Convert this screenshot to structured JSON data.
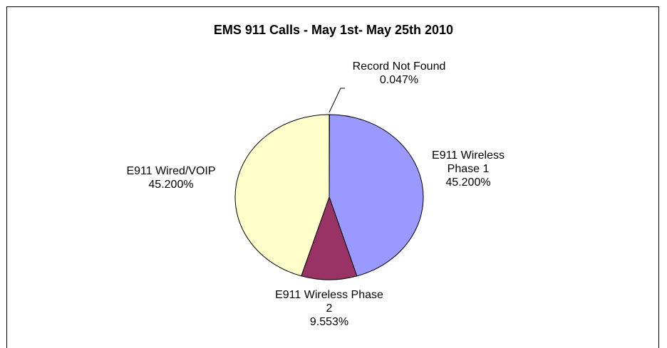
{
  "chart_data": {
    "type": "pie",
    "title": "EMS 911 Calls - May 1st- May 25th 2010",
    "categories": [
      "Record Not Found",
      "E911 Wireless Phase 1",
      "E911 Wireless Phase 2",
      "E911 Wired/VOIP"
    ],
    "values": [
      0.047,
      45.2,
      9.553,
      45.2
    ],
    "value_labels": [
      "0.047%",
      "45.200%",
      "9.553%",
      "45.200%"
    ],
    "colors": [
      "#ccffff",
      "#9999ff",
      "#993366",
      "#ffffcc"
    ]
  }
}
